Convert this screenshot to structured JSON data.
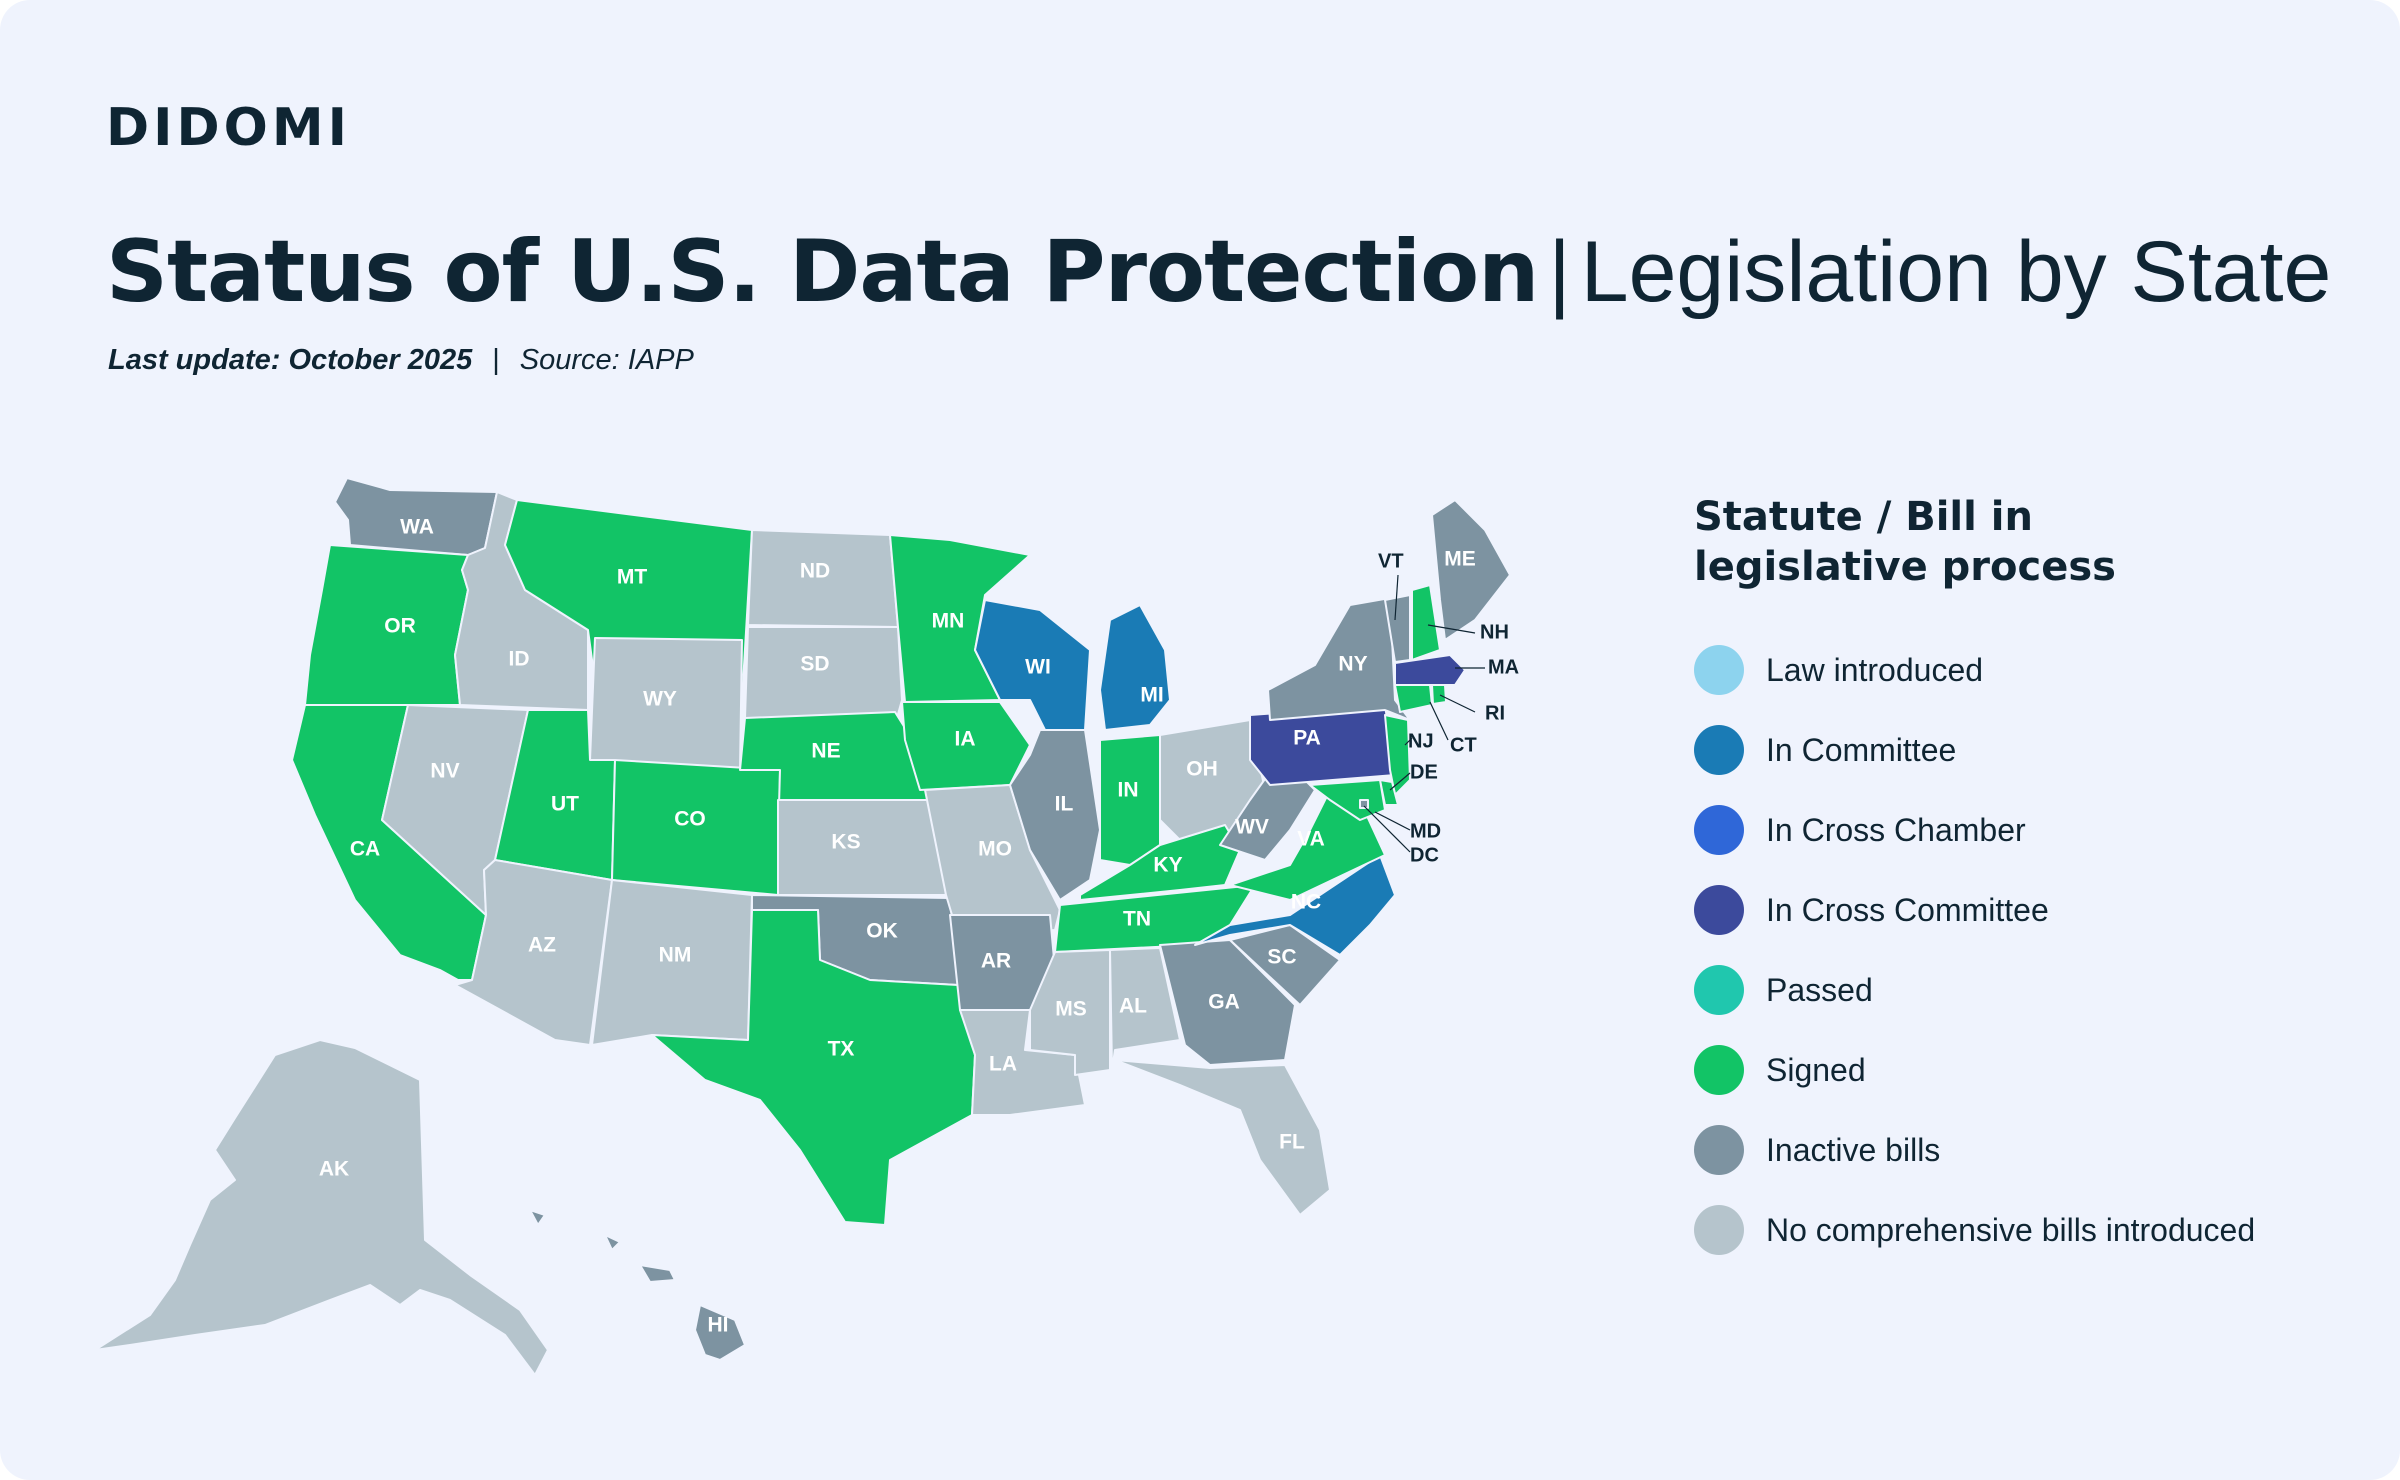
{
  "brand": {
    "logo": "DIDOMI"
  },
  "header": {
    "title_bold": "Status of U.S. Data Protection",
    "title_sep": "|",
    "title_light": "Legislation by State",
    "last_update": "Last update: October 2025",
    "pipe": "|",
    "source": "Source: IAPP"
  },
  "legend": {
    "title": "Statute / Bill in legislative process",
    "items": [
      {
        "label": "Law introduced",
        "color": "#8dd3ee"
      },
      {
        "label": "In Committee",
        "color": "#1a7bb5"
      },
      {
        "label": "In Cross Chamber",
        "color": "#2f67d8"
      },
      {
        "label": "In Cross Committee",
        "color": "#3c4a9c"
      },
      {
        "label": "Passed",
        "color": "#20c7ae"
      },
      {
        "label": "Signed",
        "color": "#12c466"
      },
      {
        "label": "Inactive bills",
        "color": "#7d93a1"
      },
      {
        "label": "No comprehensive bills introduced",
        "color": "#b5c4cc"
      }
    ]
  },
  "states": {
    "WA": {
      "status": "Inactive bills"
    },
    "OR": {
      "status": "Signed"
    },
    "CA": {
      "status": "Signed"
    },
    "ID": {
      "status": "No comprehensive bills introduced"
    },
    "NV": {
      "status": "No comprehensive bills introduced"
    },
    "MT": {
      "status": "Signed"
    },
    "WY": {
      "status": "No comprehensive bills introduced"
    },
    "UT": {
      "status": "Signed"
    },
    "CO": {
      "status": "Signed"
    },
    "AZ": {
      "status": "No comprehensive bills introduced"
    },
    "NM": {
      "status": "No comprehensive bills introduced"
    },
    "ND": {
      "status": "No comprehensive bills introduced"
    },
    "SD": {
      "status": "No comprehensive bills introduced"
    },
    "NE": {
      "status": "Signed"
    },
    "KS": {
      "status": "No comprehensive bills introduced"
    },
    "OK": {
      "status": "Inactive bills"
    },
    "TX": {
      "status": "Signed"
    },
    "MN": {
      "status": "Signed"
    },
    "IA": {
      "status": "Signed"
    },
    "MO": {
      "status": "No comprehensive bills introduced"
    },
    "AR": {
      "status": "Inactive bills"
    },
    "LA": {
      "status": "No comprehensive bills introduced"
    },
    "WI": {
      "status": "In Committee"
    },
    "MI": {
      "status": "In Committee"
    },
    "IL": {
      "status": "Inactive bills"
    },
    "IN": {
      "status": "Signed"
    },
    "OH": {
      "status": "No comprehensive bills introduced"
    },
    "KY": {
      "status": "Signed"
    },
    "TN": {
      "status": "Signed"
    },
    "MS": {
      "status": "No comprehensive bills introduced"
    },
    "AL": {
      "status": "No comprehensive bills introduced"
    },
    "GA": {
      "status": "Inactive bills"
    },
    "FL": {
      "status": "No comprehensive bills introduced"
    },
    "SC": {
      "status": "Inactive bills"
    },
    "NC": {
      "status": "In Committee"
    },
    "VA": {
      "status": "Signed"
    },
    "WV": {
      "status": "Inactive bills"
    },
    "PA": {
      "status": "In Cross Committee"
    },
    "NY": {
      "status": "Inactive bills"
    },
    "ME": {
      "status": "Inactive bills"
    },
    "VT": {
      "status": "Inactive bills"
    },
    "NH": {
      "status": "Signed"
    },
    "MA": {
      "status": "In Cross Committee"
    },
    "RI": {
      "status": "Signed"
    },
    "CT": {
      "status": "Signed"
    },
    "NJ": {
      "status": "Signed"
    },
    "DE": {
      "status": "Signed"
    },
    "MD": {
      "status": "Signed"
    },
    "DC": {
      "status": "Inactive bills"
    },
    "AK": {
      "status": "No comprehensive bills introduced"
    },
    "HI": {
      "status": "Inactive bills"
    }
  }
}
